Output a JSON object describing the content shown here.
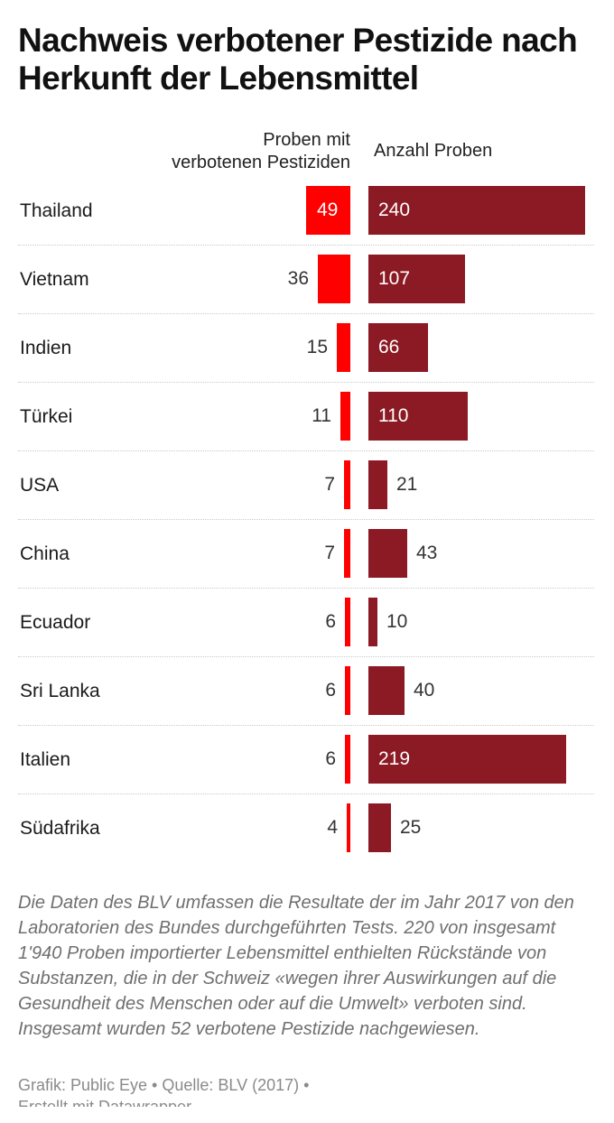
{
  "header": {
    "title": "Nachweis verbotener Pestizide nach Herkunft der Lebensmittel"
  },
  "columns": {
    "left_line1": "Proben mit",
    "left_line2": "verbotenen Pestiziden",
    "right": "Anzahl Proben"
  },
  "footer": {
    "note": "Die Daten des BLV umfassen die Resultate der im Jahr 2017 von den Laboratorien des Bundes durchgeführten Tests. 220 von insgesamt 1'940 Proben importierter Lebensmittel enthielten Rückstände von Substanzen, die in der Schweiz «wegen ihrer Auswirkungen auf die Gesundheit des Menschen oder auf die Umwelt» verboten sind. Insgesamt wurden 52 verbotene Pestizide nachgewiesen.",
    "source": "Grafik: Public Eye • Quelle: BLV (2017) •",
    "credit": "Erstellt mit Datawrapper"
  },
  "colors": {
    "banned_bar": "#ff0000",
    "total_bar": "#8b1a24"
  },
  "chart_data": {
    "type": "bar",
    "orientation": "horizontal",
    "categories": [
      "Thailand",
      "Vietnam",
      "Indien",
      "Türkei",
      "USA",
      "China",
      "Ecuador",
      "Sri Lanka",
      "Italien",
      "Südafrika"
    ],
    "series": [
      {
        "name": "Proben mit verbotenen Pestiziden",
        "values": [
          49,
          36,
          15,
          11,
          7,
          7,
          6,
          6,
          6,
          4
        ]
      },
      {
        "name": "Anzahl Proben",
        "values": [
          240,
          107,
          66,
          110,
          21,
          43,
          10,
          40,
          219,
          25
        ]
      }
    ]
  }
}
